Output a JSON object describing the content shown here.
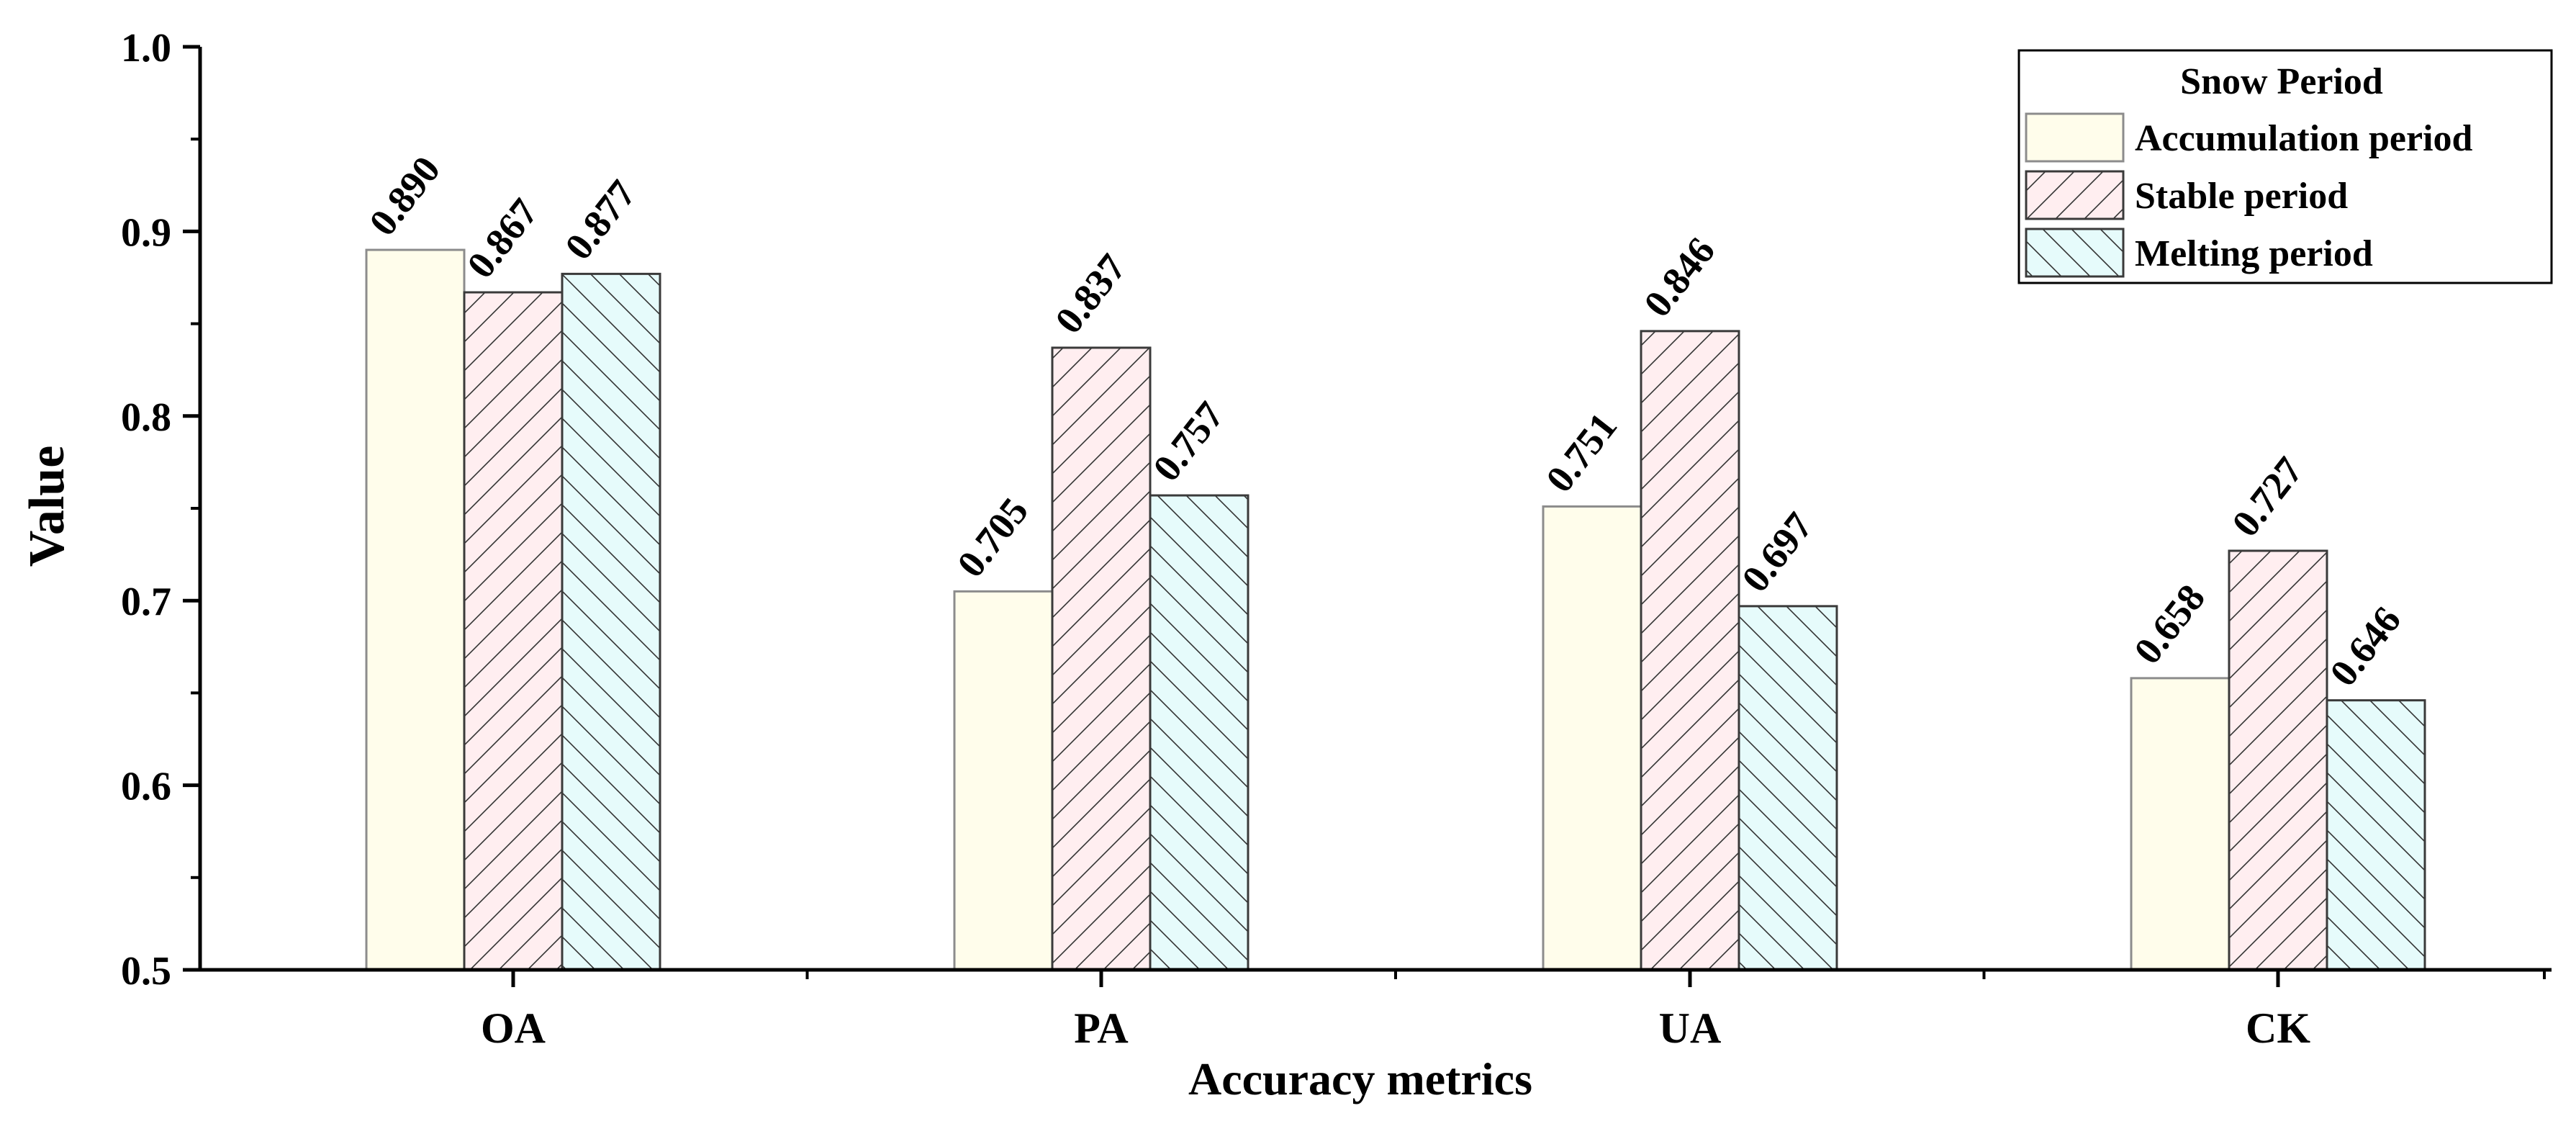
{
  "chart_data": {
    "type": "bar",
    "title": "",
    "xlabel": "Accuracy metrics",
    "ylabel": "Value",
    "ylim": [
      0.5,
      1.0
    ],
    "yticks": [
      "0.5",
      "0.6",
      "0.7",
      "0.8",
      "0.9",
      "1.0"
    ],
    "categories": [
      "OA",
      "PA",
      "UA",
      "CK"
    ],
    "legend": {
      "title": "Snow Period",
      "position": "top-right"
    },
    "series": [
      {
        "name": "Accumulation period",
        "values": [
          0.89,
          0.705,
          0.751,
          0.658
        ],
        "labels": [
          "0.890",
          "0.705",
          "0.751",
          "0.658"
        ],
        "fill": "#fffdeb",
        "stroke": "#8c8c8c",
        "pattern": "none"
      },
      {
        "name": "Stable period",
        "values": [
          0.867,
          0.837,
          0.846,
          0.727
        ],
        "labels": [
          "0.867",
          "0.837",
          "0.846",
          "0.727"
        ],
        "fill": "#ffeef0",
        "stroke": "#3a3a3a",
        "pattern": "forward-diagonal"
      },
      {
        "name": "Melting period",
        "values": [
          0.877,
          0.757,
          0.697,
          0.646
        ],
        "labels": [
          "0.877",
          "0.757",
          "0.697",
          "0.646"
        ],
        "fill": "#e6fbfb",
        "stroke": "#3a3a3a",
        "pattern": "back-diagonal"
      }
    ],
    "grid": false
  }
}
